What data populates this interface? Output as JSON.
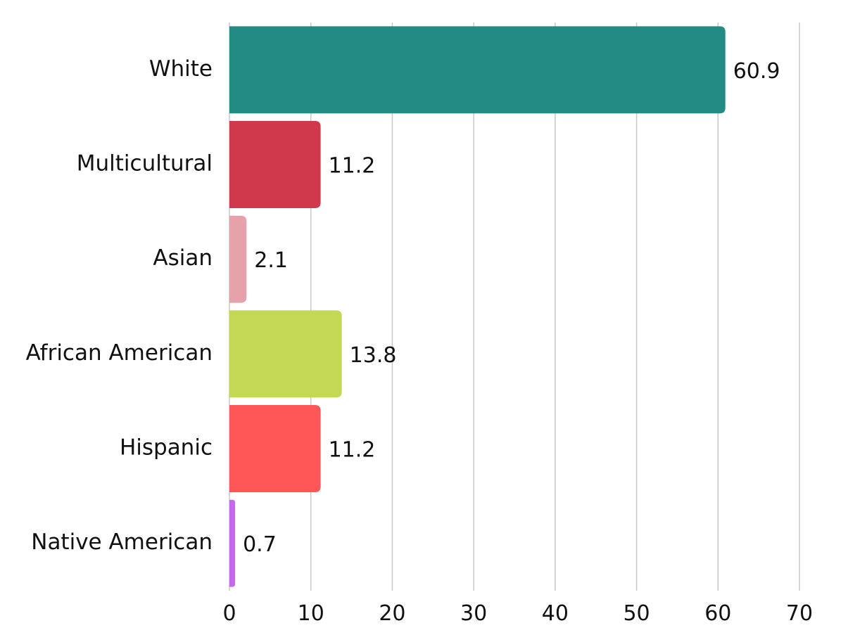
{
  "chart_data": {
    "type": "bar",
    "orientation": "horizontal",
    "categories": [
      "White",
      "Multicultural",
      "Asian",
      "African American",
      "Hispanic",
      "Native American"
    ],
    "values": [
      60.9,
      11.2,
      2.1,
      13.8,
      11.2,
      0.7
    ],
    "colors": [
      "#248a84",
      "#d0394b",
      "#e5a2aa",
      "#c5d855",
      "#ff5757",
      "#c46ae6"
    ],
    "xlim": [
      0,
      70
    ],
    "xticks": [
      0,
      10,
      20,
      30,
      40,
      50,
      60,
      70
    ],
    "grid": "vertical",
    "legend": "none",
    "data_labels": true
  }
}
